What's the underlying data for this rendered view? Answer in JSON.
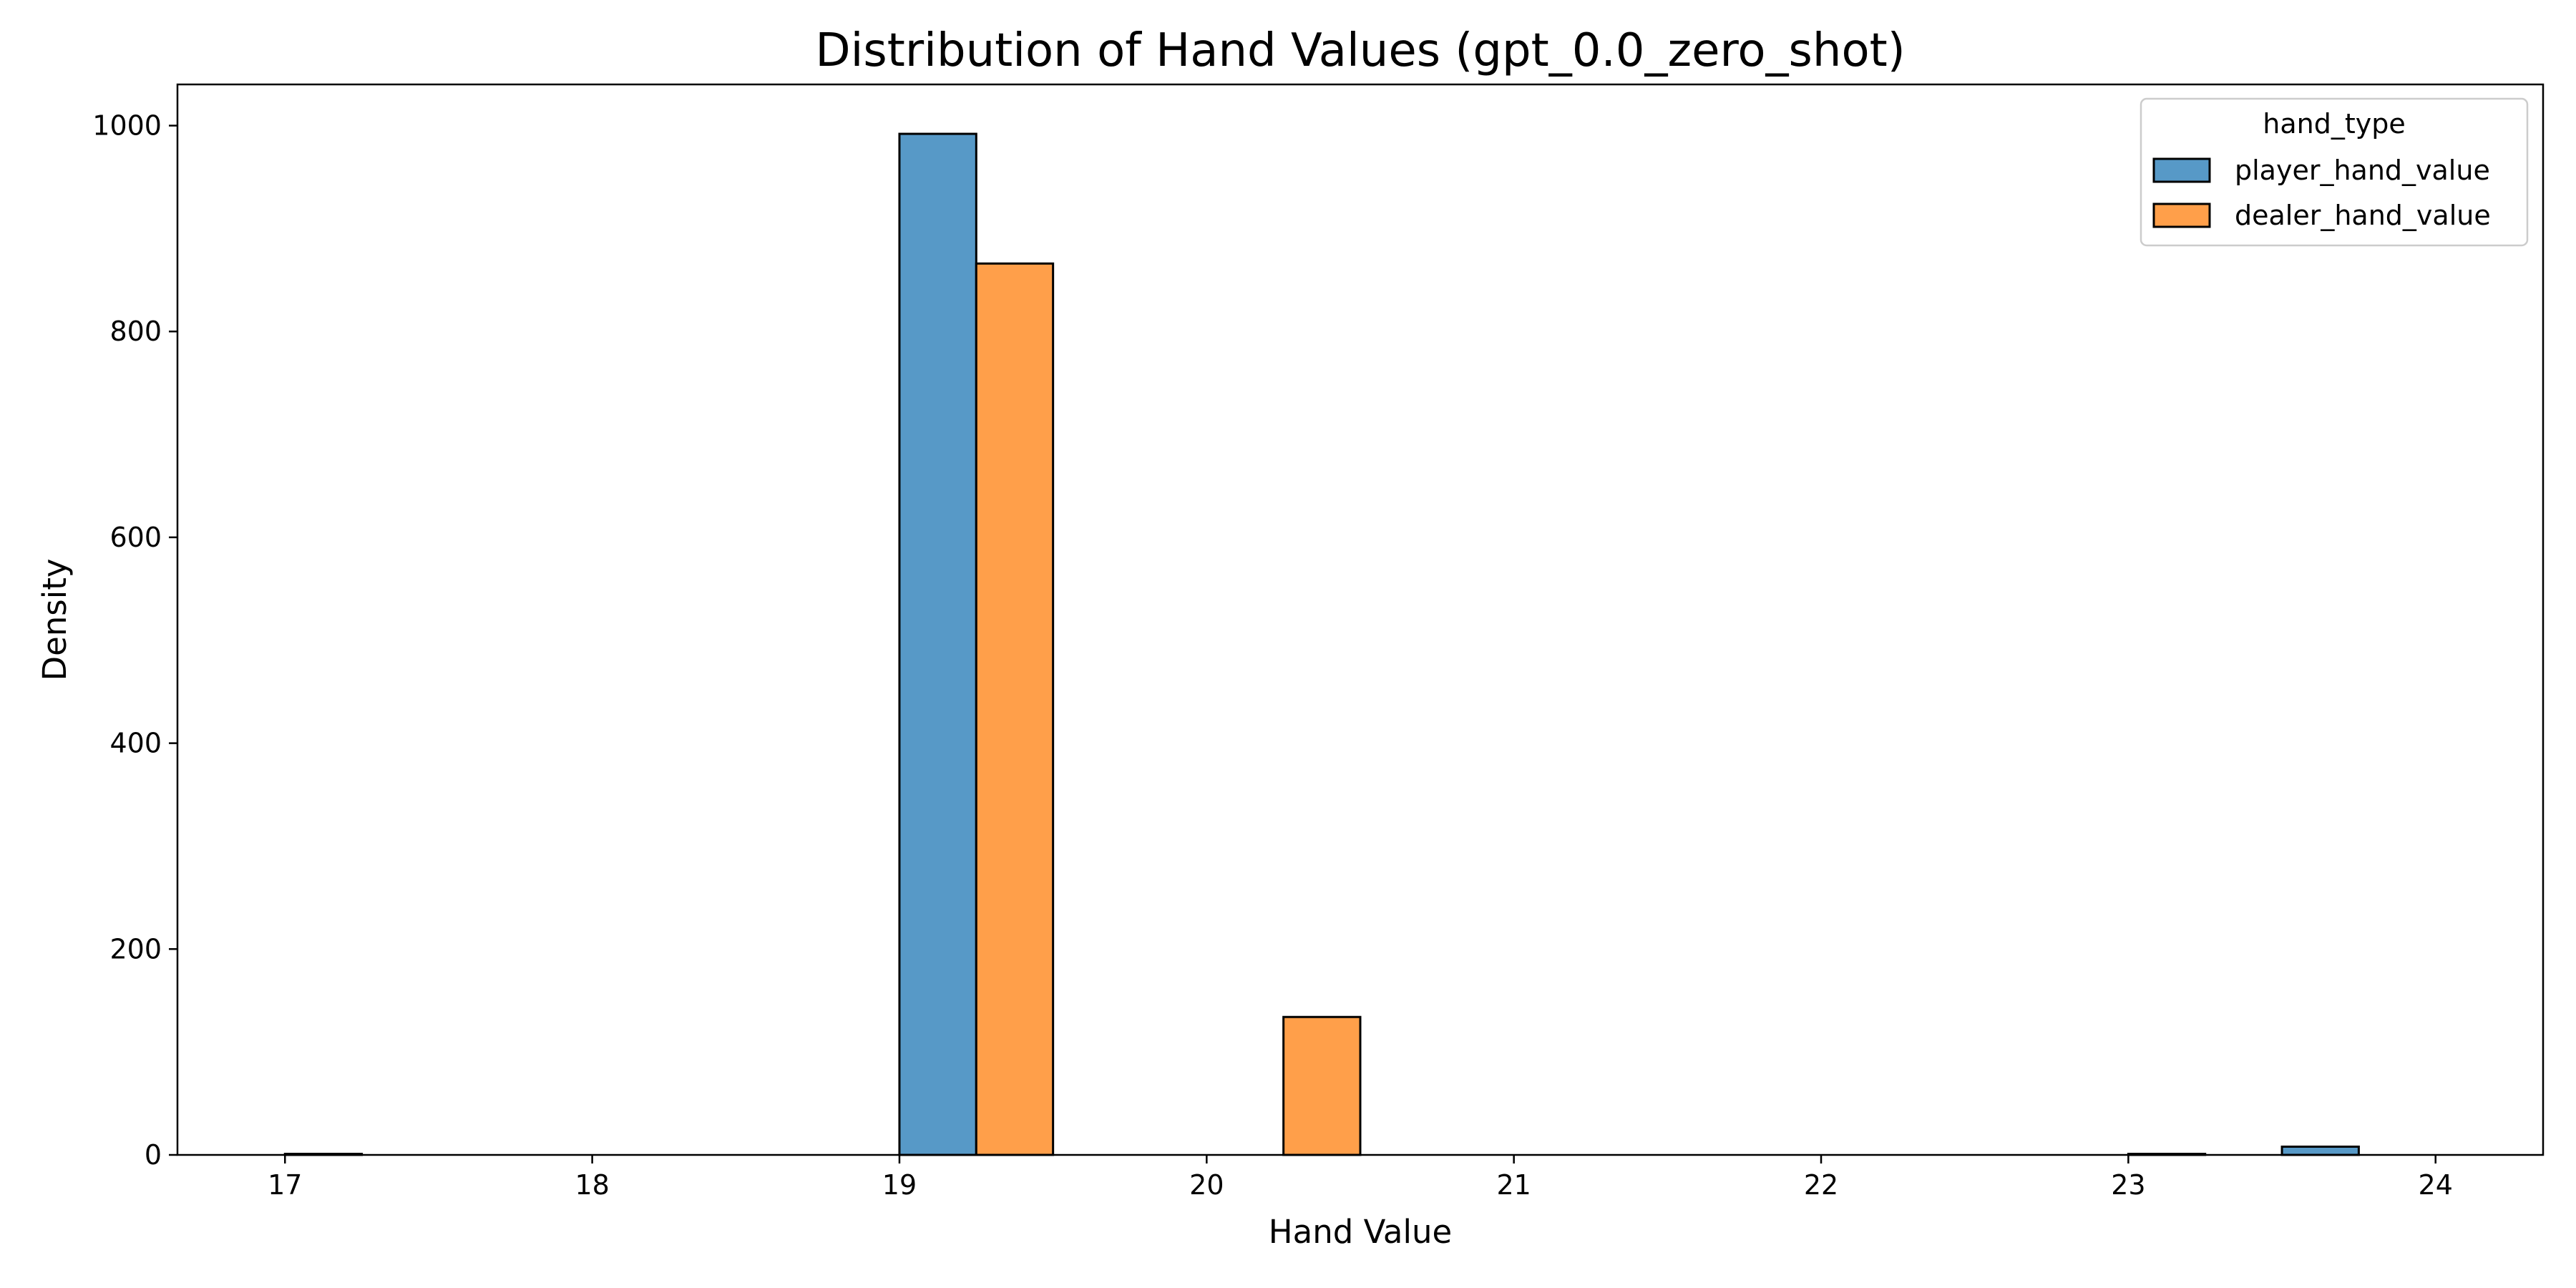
{
  "chart_data": {
    "type": "bar",
    "title": "Distribution of Hand Values (gpt_0.0_zero_shot)",
    "xlabel": "Hand Value",
    "ylabel": "Density",
    "xlim": [
      16.65,
      24.35
    ],
    "ylim": [
      0,
      1040
    ],
    "x_ticks": [
      17,
      18,
      19,
      20,
      21,
      22,
      23,
      24
    ],
    "y_ticks": [
      0,
      200,
      400,
      600,
      800,
      1000
    ],
    "grid": false,
    "legend": {
      "title": "hand_type",
      "placement": "top-right"
    },
    "bin_width": 0.25,
    "series": [
      {
        "name": "player_hand_value",
        "color": "#5799c7",
        "bins": [
          {
            "x": 17.0,
            "value": 0
          },
          {
            "x": 19.0,
            "value": 992
          },
          {
            "x": 23.0,
            "value": 0
          },
          {
            "x": 23.5,
            "value": 8
          }
        ]
      },
      {
        "name": "dealer_hand_value",
        "color": "#ff9f4a",
        "bins": [
          {
            "x": 17.0,
            "value": 1
          },
          {
            "x": 19.25,
            "value": 866
          },
          {
            "x": 20.25,
            "value": 134
          },
          {
            "x": 23.0,
            "value": 1
          }
        ]
      }
    ]
  }
}
